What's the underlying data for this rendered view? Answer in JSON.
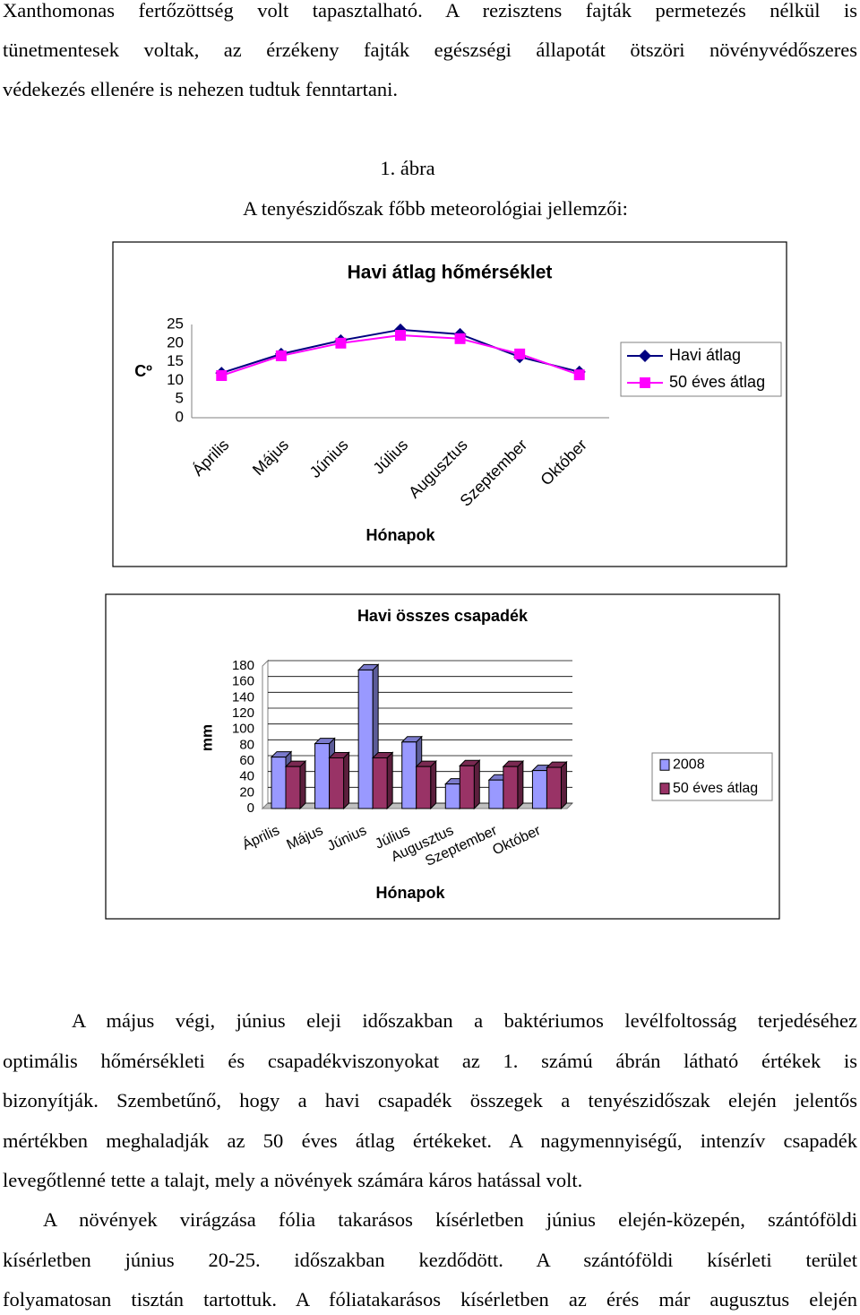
{
  "document": {
    "figure_caption": "1. ábra",
    "figure_title": "A tenyészidőszak főbb meteorológiai jellemzői:",
    "paragraphs": [
      {
        "lines": [
          "Xanthomonas fertőzöttség volt tapasztalható. A rezisztens fajták permetezés nélkül is",
          "tünetmentesek voltak, az érzékeny fajták egészségi állapotát ötszöri növényvédőszeres",
          "védekezés ellenére is nehezen tudtuk fenntartani."
        ]
      },
      {
        "lines": [
          "A május végi, június eleji időszakban a baktériumos levélfoltosság terjedéséhez",
          "optimális hőmérsékleti és csapadékviszonyokat az 1. számú ábrán látható értékek is",
          "bizonyítják. Szembetűnő, hogy a havi csapadék összegek a tenyészidőszak elején jelentős",
          "mértékben meghaladják az 50 éves átlag értékeket. A nagymennyiségű, intenzív csapadék",
          "levegőtlenné tette a talajt, mely a növények számára káros hatással volt."
        ]
      },
      {
        "lines": [
          "A növények virágzása fólia takarásos kísérletben június elején-közepén, szántóföldi",
          "kísérletben június 20-25. időszakban kezdődött. A szántóföldi kísérleti terület",
          "folyamatosan tisztán tartottuk. A fóliatakarásos kísérletben az érés már augusztus elején"
        ]
      }
    ]
  },
  "chart_data": [
    {
      "type": "line",
      "title": "Havi átlag hőmérséklet",
      "x_label": "Hónapok",
      "y_label": "Cº",
      "categories": [
        "Április",
        "Május",
        "Június",
        "Július",
        "Augusztus",
        "Szeptember",
        "Október"
      ],
      "series": [
        {
          "name": "Havi átlag",
          "color": "#000080",
          "marker": "diamond",
          "values": [
            12.0,
            17.1,
            20.7,
            23.6,
            22.4,
            16.3,
            12.3
          ]
        },
        {
          "name": "50 éves átlag",
          "color": "#ff00ff",
          "marker": "square",
          "values": [
            11.3,
            16.6,
            20.0,
            22.1,
            21.2,
            17.1,
            11.5
          ]
        }
      ],
      "ylim": [
        0,
        25
      ],
      "yticks": [
        0,
        5,
        10,
        15,
        20,
        25
      ],
      "grid": false,
      "legend": "right"
    },
    {
      "type": "bar",
      "title": "Havi összes csapadék",
      "x_label": "Hónapok",
      "y_label": "mm",
      "categories": [
        "Április",
        "Május",
        "Június",
        "Július",
        "Augusztus",
        "Szeptember",
        "Október"
      ],
      "series": [
        {
          "name": "2008",
          "color": "#9999ff",
          "values": [
            65,
            82,
            175,
            84,
            31,
            36,
            48
          ]
        },
        {
          "name": "50 éves átlag",
          "color": "#993366",
          "values": [
            53,
            64,
            64,
            53,
            54,
            53,
            52
          ]
        }
      ],
      "ylim": [
        0,
        180
      ],
      "yticks": [
        0,
        20,
        40,
        60,
        80,
        100,
        120,
        140,
        160,
        180
      ],
      "grid": true,
      "legend": "right"
    }
  ]
}
